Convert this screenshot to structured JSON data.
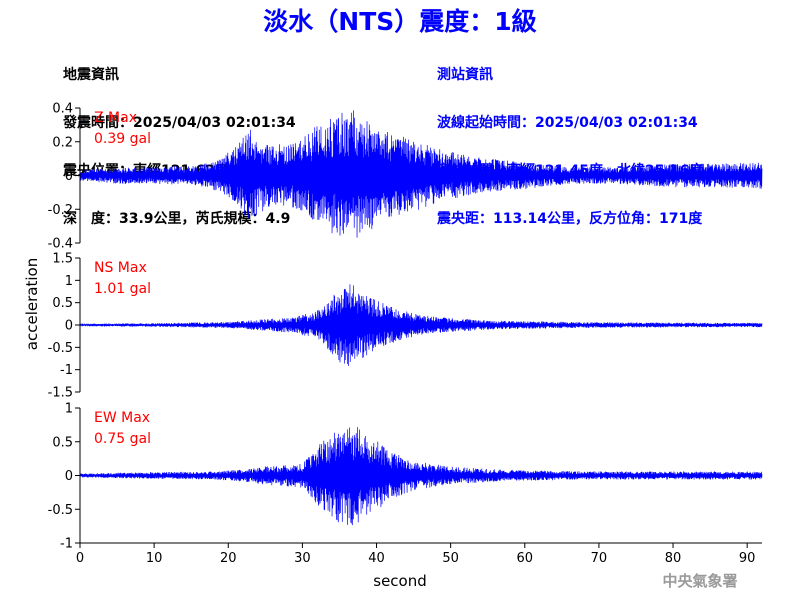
{
  "title": "淡水（NTS）震度：1級",
  "earthquake_info": {
    "heading": "地震資訊",
    "origin_time": "發震時間：2025/04/03 02:01:34",
    "epicenter": "震央位置：東經121.62度，北緯24.16度",
    "depth_magnitude": "深　度：33.9公里，芮氏規模：4.9"
  },
  "station_info": {
    "heading": "測站資訊",
    "wave_start": "波線起始時間：2025/04/03 02:01:34",
    "location": "測站位置：東經121.45度，北緯25.16度",
    "distance": "震央距：113.14公里，反方位角：171度"
  },
  "footer": {
    "agency": "中央氣象署"
  },
  "colors": {
    "trace": "#0000ff",
    "max_label": "#ff0000",
    "title": "#0000ff"
  },
  "chart_data": {
    "type": "line",
    "xlabel": "second",
    "ylabel": "acceleration",
    "xlim": [
      0,
      92
    ],
    "xticks": [
      0,
      10,
      20,
      30,
      40,
      50,
      60,
      70,
      80,
      90
    ],
    "panels": [
      {
        "name": "Z",
        "max_label": "Z Max",
        "max_value": "0.39 gal",
        "ylim": [
          -0.4,
          0.4
        ],
        "yticks": [
          -0.4,
          -0.2,
          0,
          0.2,
          0.4
        ],
        "ytick_labels": [
          "-0.4",
          "-0.2",
          "0",
          "0.2",
          "0.4"
        ],
        "envelope": [
          [
            0,
            0.03
          ],
          [
            5,
            0.05
          ],
          [
            10,
            0.05
          ],
          [
            16,
            0.06
          ],
          [
            19,
            0.1
          ],
          [
            21,
            0.18
          ],
          [
            23,
            0.28
          ],
          [
            25,
            0.2
          ],
          [
            28,
            0.18
          ],
          [
            30,
            0.22
          ],
          [
            32,
            0.3
          ],
          [
            35,
            0.37
          ],
          [
            37,
            0.39
          ],
          [
            39,
            0.33
          ],
          [
            42,
            0.25
          ],
          [
            46,
            0.2
          ],
          [
            50,
            0.14
          ],
          [
            55,
            0.1
          ],
          [
            60,
            0.08
          ],
          [
            66,
            0.05
          ],
          [
            72,
            0.05
          ],
          [
            76,
            0.06
          ],
          [
            80,
            0.07
          ],
          [
            85,
            0.07
          ],
          [
            92,
            0.08
          ]
        ]
      },
      {
        "name": "NS",
        "max_label": "NS Max",
        "max_value": "1.01 gal",
        "ylim": [
          -1.5,
          1.5
        ],
        "yticks": [
          -1.5,
          -1,
          -0.5,
          0,
          0.5,
          1,
          1.5
        ],
        "ytick_labels": [
          "-1.5",
          "-1",
          "-0.5",
          "0",
          "0.5",
          "1",
          "1.5"
        ],
        "envelope": [
          [
            0,
            0.03
          ],
          [
            10,
            0.04
          ],
          [
            20,
            0.07
          ],
          [
            25,
            0.13
          ],
          [
            29,
            0.18
          ],
          [
            32,
            0.32
          ],
          [
            34,
            0.65
          ],
          [
            36,
            1.0
          ],
          [
            38,
            0.75
          ],
          [
            40,
            0.55
          ],
          [
            43,
            0.35
          ],
          [
            46,
            0.22
          ],
          [
            50,
            0.15
          ],
          [
            58,
            0.09
          ],
          [
            70,
            0.06
          ],
          [
            85,
            0.05
          ],
          [
            92,
            0.05
          ]
        ]
      },
      {
        "name": "EW",
        "max_label": "EW Max",
        "max_value": "0.75 gal",
        "ylim": [
          -1,
          1
        ],
        "yticks": [
          -1,
          -0.5,
          0,
          0.5,
          1
        ],
        "ytick_labels": [
          "-1",
          "-0.5",
          "0",
          "0.5",
          "1"
        ],
        "envelope": [
          [
            0,
            0.03
          ],
          [
            10,
            0.05
          ],
          [
            18,
            0.06
          ],
          [
            22,
            0.09
          ],
          [
            25,
            0.14
          ],
          [
            30,
            0.18
          ],
          [
            33,
            0.55
          ],
          [
            35,
            0.72
          ],
          [
            37,
            0.75
          ],
          [
            39,
            0.6
          ],
          [
            42,
            0.35
          ],
          [
            45,
            0.22
          ],
          [
            50,
            0.13
          ],
          [
            58,
            0.08
          ],
          [
            70,
            0.06
          ],
          [
            85,
            0.06
          ],
          [
            92,
            0.06
          ]
        ]
      }
    ]
  }
}
